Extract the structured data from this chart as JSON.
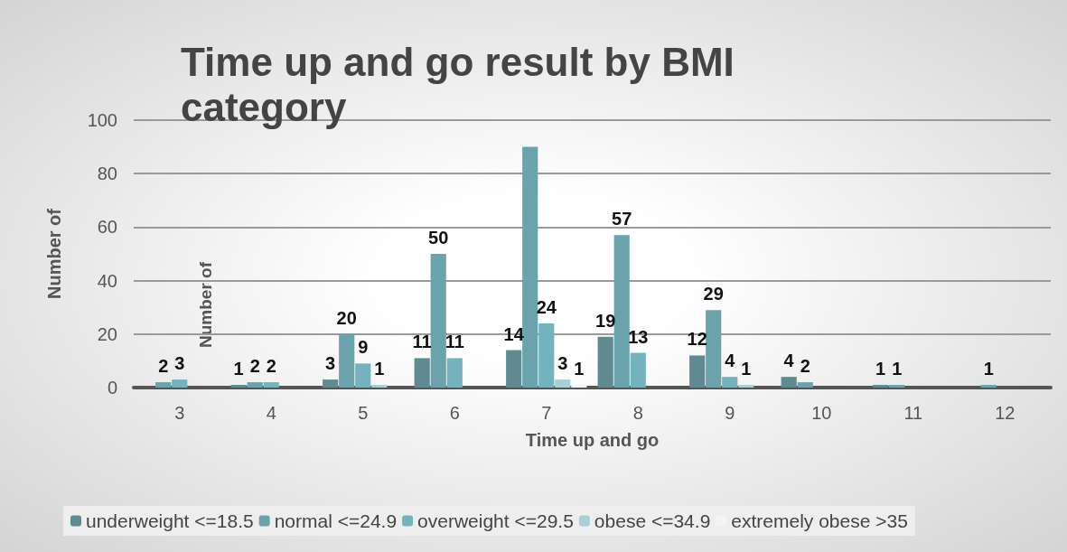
{
  "chart_data": {
    "type": "bar",
    "title": "Time up and go result by BMI category",
    "xlabel": "Time up and go",
    "ylabel": "Number of",
    "annotations": [
      "Number of"
    ],
    "categories": [
      "3",
      "4",
      "5",
      "6",
      "7",
      "8",
      "9",
      "10",
      "11",
      "12"
    ],
    "series": [
      {
        "name": "underweight <=18.5",
        "color": "#5e8a90",
        "values": [
          null,
          1,
          3,
          11,
          14,
          19,
          12,
          4,
          1,
          null
        ],
        "value_labels": [
          null,
          "1",
          "3",
          "11",
          "14",
          "19",
          "12",
          "4",
          "1",
          null
        ]
      },
      {
        "name": "normal <=24.9",
        "color": "#6aa3ac",
        "values": [
          2,
          2,
          20,
          50,
          90,
          57,
          29,
          2,
          1,
          1
        ],
        "value_labels": [
          "2",
          "2",
          "20",
          "50",
          null,
          "57",
          "29",
          "2",
          "1",
          "1"
        ]
      },
      {
        "name": "overweight <=29.5",
        "color": "#74b3bd",
        "values": [
          3,
          2,
          9,
          11,
          24,
          13,
          4,
          null,
          null,
          null
        ],
        "value_labels": [
          "3",
          "2",
          "9",
          "11",
          "24",
          "13",
          "4",
          null,
          null,
          null
        ]
      },
      {
        "name": "obese <=34.9",
        "color": "#a7cfd4",
        "values": [
          null,
          null,
          1,
          null,
          3,
          null,
          1,
          null,
          null,
          null
        ],
        "value_labels": [
          null,
          null,
          "1",
          null,
          "3",
          null,
          "1",
          null,
          null,
          null
        ]
      },
      {
        "name": "extremely obese >35",
        "color": "#eef6f7",
        "values": [
          null,
          null,
          null,
          null,
          1,
          null,
          null,
          null,
          null,
          null
        ],
        "value_labels": [
          null,
          null,
          null,
          null,
          "1",
          null,
          null,
          null,
          null,
          null
        ]
      }
    ],
    "ylim": [
      0,
      100
    ],
    "yticks": [
      0,
      20,
      40,
      60,
      80,
      100
    ],
    "grid": "y",
    "legend": "bottom"
  }
}
